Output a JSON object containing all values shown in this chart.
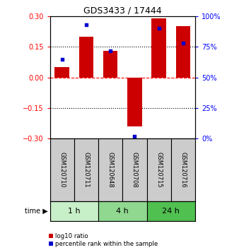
{
  "title": "GDS3433 / 17444",
  "samples": [
    "GSM120710",
    "GSM120711",
    "GSM120648",
    "GSM120708",
    "GSM120715",
    "GSM120716"
  ],
  "log10_ratio": [
    0.05,
    0.2,
    0.13,
    -0.24,
    0.29,
    0.25
  ],
  "percentile_rank": [
    65,
    93,
    72,
    2,
    90,
    78
  ],
  "time_groups": [
    {
      "label": "1 h",
      "samples": [
        0,
        1
      ],
      "color": "#c8f0c8"
    },
    {
      "label": "4 h",
      "samples": [
        2,
        3
      ],
      "color": "#90d890"
    },
    {
      "label": "24 h",
      "samples": [
        4,
        5
      ],
      "color": "#50c050"
    }
  ],
  "bar_color": "#cc0000",
  "dot_color": "#0000cc",
  "ylim": [
    -0.3,
    0.3
  ],
  "y2lim": [
    0,
    100
  ],
  "yticks": [
    -0.3,
    -0.15,
    0,
    0.15,
    0.3
  ],
  "y2ticks": [
    0,
    25,
    50,
    75,
    100
  ],
  "hline_values": [
    0.15,
    0,
    -0.15
  ],
  "hline_styles": [
    "dotted",
    "dashed",
    "dotted"
  ],
  "hline_colors": [
    "black",
    "red",
    "black"
  ],
  "bar_width": 0.6,
  "dot_size": 12,
  "sample_box_color": "#cccccc",
  "legend_items": [
    "log10 ratio",
    "percentile rank within the sample"
  ]
}
